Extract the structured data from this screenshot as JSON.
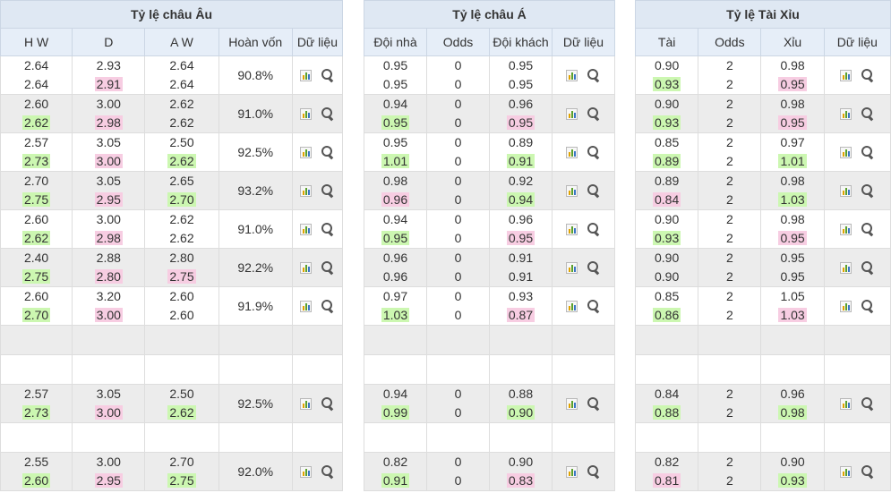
{
  "panels": [
    {
      "title": "Tỷ lệ châu Âu",
      "cols": [
        "H W",
        "D",
        "A W",
        "Hoàn vốn",
        "Dữ liệu"
      ],
      "rows": [
        {
          "type": "data",
          "a": [
            "2.64",
            "2.64"
          ],
          "b": [
            "2.93",
            "2.91"
          ],
          "c": [
            "2.64",
            "2.64"
          ],
          "pct": "90.8%",
          "hl": {
            "a": [
              null,
              null
            ],
            "b": [
              null,
              "pink"
            ],
            "c": [
              null,
              null
            ]
          }
        },
        {
          "type": "data",
          "a": [
            "2.60",
            "2.62"
          ],
          "b": [
            "3.00",
            "2.98"
          ],
          "c": [
            "2.62",
            "2.62"
          ],
          "pct": "91.0%",
          "hl": {
            "a": [
              null,
              "green"
            ],
            "b": [
              null,
              "pink"
            ],
            "c": [
              null,
              null
            ]
          }
        },
        {
          "type": "data",
          "a": [
            "2.57",
            "2.73"
          ],
          "b": [
            "3.05",
            "3.00"
          ],
          "c": [
            "2.50",
            "2.62"
          ],
          "pct": "92.5%",
          "hl": {
            "a": [
              null,
              "green"
            ],
            "b": [
              null,
              "pink"
            ],
            "c": [
              null,
              "green"
            ]
          }
        },
        {
          "type": "data",
          "a": [
            "2.70",
            "2.75"
          ],
          "b": [
            "3.05",
            "2.95"
          ],
          "c": [
            "2.65",
            "2.70"
          ],
          "pct": "93.2%",
          "hl": {
            "a": [
              null,
              "green"
            ],
            "b": [
              null,
              "pink"
            ],
            "c": [
              null,
              "green"
            ]
          }
        },
        {
          "type": "data",
          "a": [
            "2.60",
            "2.62"
          ],
          "b": [
            "3.00",
            "2.98"
          ],
          "c": [
            "2.62",
            "2.62"
          ],
          "pct": "91.0%",
          "hl": {
            "a": [
              null,
              "green"
            ],
            "b": [
              null,
              "pink"
            ],
            "c": [
              null,
              null
            ]
          }
        },
        {
          "type": "data",
          "a": [
            "2.40",
            "2.75"
          ],
          "b": [
            "2.88",
            "2.80"
          ],
          "c": [
            "2.80",
            "2.75"
          ],
          "pct": "92.2%",
          "hl": {
            "a": [
              null,
              "green"
            ],
            "b": [
              null,
              "pink"
            ],
            "c": [
              null,
              "pink"
            ]
          }
        },
        {
          "type": "data",
          "a": [
            "2.60",
            "2.70"
          ],
          "b": [
            "3.20",
            "3.00"
          ],
          "c": [
            "2.60",
            "2.60"
          ],
          "pct": "91.9%",
          "hl": {
            "a": [
              null,
              "green"
            ],
            "b": [
              null,
              "pink"
            ],
            "c": [
              null,
              null
            ]
          }
        },
        {
          "type": "gap"
        },
        {
          "type": "gapw"
        },
        {
          "type": "data",
          "a": [
            "2.57",
            "2.73"
          ],
          "b": [
            "3.05",
            "3.00"
          ],
          "c": [
            "2.50",
            "2.62"
          ],
          "pct": "92.5%",
          "hl": {
            "a": [
              null,
              "green"
            ],
            "b": [
              null,
              "pink"
            ],
            "c": [
              null,
              "green"
            ]
          }
        },
        {
          "type": "gapw"
        },
        {
          "type": "data",
          "a": [
            "2.55",
            "2.60"
          ],
          "b": [
            "3.00",
            "2.95"
          ],
          "c": [
            "2.70",
            "2.75"
          ],
          "pct": "92.0%",
          "hl": {
            "a": [
              null,
              "green"
            ],
            "b": [
              null,
              "pink"
            ],
            "c": [
              null,
              "green"
            ]
          }
        }
      ]
    },
    {
      "title": "Tỷ lệ châu Á",
      "cols": [
        "Đội nhà",
        "Odds",
        "Đội khách",
        "Dữ liệu"
      ],
      "rows": [
        {
          "type": "data",
          "a": [
            "0.95",
            "0.95"
          ],
          "b": [
            "0",
            "0"
          ],
          "c": [
            "0.95",
            "0.95"
          ],
          "hl": {
            "a": [
              null,
              null
            ],
            "b": [
              null,
              null
            ],
            "c": [
              null,
              null
            ]
          }
        },
        {
          "type": "data",
          "a": [
            "0.94",
            "0.95"
          ],
          "b": [
            "0",
            "0"
          ],
          "c": [
            "0.96",
            "0.95"
          ],
          "hl": {
            "a": [
              null,
              "green"
            ],
            "b": [
              null,
              null
            ],
            "c": [
              null,
              "pink"
            ]
          }
        },
        {
          "type": "data",
          "a": [
            "0.95",
            "1.01"
          ],
          "b": [
            "0",
            "0"
          ],
          "c": [
            "0.89",
            "0.91"
          ],
          "hl": {
            "a": [
              null,
              "green"
            ],
            "b": [
              null,
              null
            ],
            "c": [
              null,
              "green"
            ]
          }
        },
        {
          "type": "data",
          "a": [
            "0.98",
            "0.96"
          ],
          "b": [
            "0",
            "0"
          ],
          "c": [
            "0.92",
            "0.94"
          ],
          "hl": {
            "a": [
              null,
              "pink"
            ],
            "b": [
              null,
              null
            ],
            "c": [
              null,
              "green"
            ]
          }
        },
        {
          "type": "data",
          "a": [
            "0.94",
            "0.95"
          ],
          "b": [
            "0",
            "0"
          ],
          "c": [
            "0.96",
            "0.95"
          ],
          "hl": {
            "a": [
              null,
              "green"
            ],
            "b": [
              null,
              null
            ],
            "c": [
              null,
              "pink"
            ]
          }
        },
        {
          "type": "data",
          "a": [
            "0.96",
            "0.96"
          ],
          "b": [
            "0",
            "0"
          ],
          "c": [
            "0.91",
            "0.91"
          ],
          "hl": {
            "a": [
              null,
              null
            ],
            "b": [
              null,
              null
            ],
            "c": [
              null,
              null
            ]
          }
        },
        {
          "type": "data",
          "a": [
            "0.97",
            "1.03"
          ],
          "b": [
            "0",
            "0"
          ],
          "c": [
            "0.93",
            "0.87"
          ],
          "hl": {
            "a": [
              null,
              "green"
            ],
            "b": [
              null,
              null
            ],
            "c": [
              null,
              "pink"
            ]
          }
        },
        {
          "type": "gap"
        },
        {
          "type": "gapw"
        },
        {
          "type": "data",
          "a": [
            "0.94",
            "0.99"
          ],
          "b": [
            "0",
            "0"
          ],
          "c": [
            "0.88",
            "0.90"
          ],
          "hl": {
            "a": [
              null,
              "green"
            ],
            "b": [
              null,
              null
            ],
            "c": [
              null,
              "green"
            ]
          }
        },
        {
          "type": "gapw"
        },
        {
          "type": "data",
          "a": [
            "0.82",
            "0.91"
          ],
          "b": [
            "0",
            "0"
          ],
          "c": [
            "0.90",
            "0.83"
          ],
          "hl": {
            "a": [
              null,
              "green"
            ],
            "b": [
              null,
              null
            ],
            "c": [
              null,
              "pink"
            ]
          }
        }
      ]
    },
    {
      "title": "Tỷ lệ Tài Xỉu",
      "cols": [
        "Tài",
        "Odds",
        "Xỉu",
        "Dữ liệu"
      ],
      "rows": [
        {
          "type": "data",
          "a": [
            "0.90",
            "0.93"
          ],
          "b": [
            "2",
            "2"
          ],
          "c": [
            "0.98",
            "0.95"
          ],
          "hl": {
            "a": [
              null,
              "green"
            ],
            "b": [
              null,
              null
            ],
            "c": [
              null,
              "pink"
            ]
          }
        },
        {
          "type": "data",
          "a": [
            "0.90",
            "0.93"
          ],
          "b": [
            "2",
            "2"
          ],
          "c": [
            "0.98",
            "0.95"
          ],
          "hl": {
            "a": [
              null,
              "green"
            ],
            "b": [
              null,
              null
            ],
            "c": [
              null,
              "pink"
            ]
          }
        },
        {
          "type": "data",
          "a": [
            "0.85",
            "0.89"
          ],
          "b": [
            "2",
            "2"
          ],
          "c": [
            "0.97",
            "1.01"
          ],
          "hl": {
            "a": [
              null,
              "green"
            ],
            "b": [
              null,
              null
            ],
            "c": [
              null,
              "green"
            ]
          }
        },
        {
          "type": "data",
          "a": [
            "0.89",
            "0.84"
          ],
          "b": [
            "2",
            "2"
          ],
          "c": [
            "0.98",
            "1.03"
          ],
          "hl": {
            "a": [
              null,
              "pink"
            ],
            "b": [
              null,
              null
            ],
            "c": [
              null,
              "green"
            ]
          }
        },
        {
          "type": "data",
          "a": [
            "0.90",
            "0.93"
          ],
          "b": [
            "2",
            "2"
          ],
          "c": [
            "0.98",
            "0.95"
          ],
          "hl": {
            "a": [
              null,
              "green"
            ],
            "b": [
              null,
              null
            ],
            "c": [
              null,
              "pink"
            ]
          }
        },
        {
          "type": "data",
          "a": [
            "0.90",
            "0.90"
          ],
          "b": [
            "2",
            "2"
          ],
          "c": [
            "0.95",
            "0.95"
          ],
          "hl": {
            "a": [
              null,
              null
            ],
            "b": [
              null,
              null
            ],
            "c": [
              null,
              null
            ]
          }
        },
        {
          "type": "data",
          "a": [
            "0.85",
            "0.86"
          ],
          "b": [
            "2",
            "2"
          ],
          "c": [
            "1.05",
            "1.03"
          ],
          "hl": {
            "a": [
              null,
              "green"
            ],
            "b": [
              null,
              null
            ],
            "c": [
              null,
              "pink"
            ]
          }
        },
        {
          "type": "gap"
        },
        {
          "type": "gapw"
        },
        {
          "type": "data",
          "a": [
            "0.84",
            "0.88"
          ],
          "b": [
            "2",
            "2"
          ],
          "c": [
            "0.96",
            "0.98"
          ],
          "hl": {
            "a": [
              null,
              "green"
            ],
            "b": [
              null,
              null
            ],
            "c": [
              null,
              "green"
            ]
          }
        },
        {
          "type": "gapw"
        },
        {
          "type": "data",
          "a": [
            "0.82",
            "0.81"
          ],
          "b": [
            "2",
            "2"
          ],
          "c": [
            "0.90",
            "0.93"
          ],
          "hl": {
            "a": [
              null,
              "pink"
            ],
            "b": [
              null,
              null
            ],
            "c": [
              null,
              "green"
            ]
          }
        }
      ]
    }
  ],
  "icons": {
    "chart": "bar-chart-icon",
    "search": "magnifier-icon"
  },
  "colors": {
    "header_bg": "#dfe8f3",
    "alt_row": "#ececec",
    "up": "#ccf7b1",
    "down": "#f7cde2"
  }
}
